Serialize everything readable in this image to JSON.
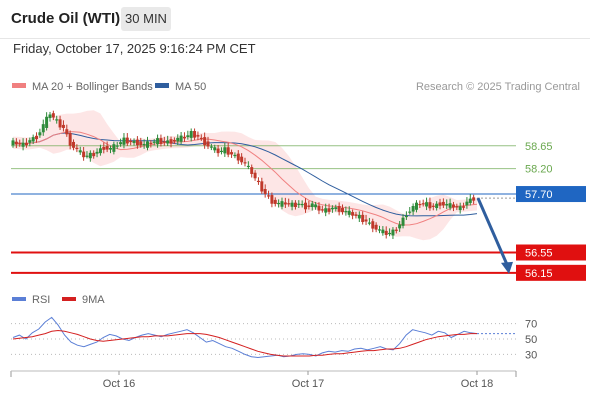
{
  "header": {
    "instrument": "Crude Oil (WTI)",
    "timeframe": "30 MIN",
    "datetime": "Friday, October 17, 2025 9:16:24 PM CET"
  },
  "legend": {
    "ma20_label": "MA 20 + Bollinger Bands",
    "ma50_label": "MA 50",
    "rsi_label": "RSI",
    "ma9_label": "9MA"
  },
  "credit": "Research © 2025 Trading Central",
  "colors": {
    "ma20": "#f08080",
    "ma50": "#2f5e9e",
    "bollinger_fill": "#fde3e3",
    "up_candle": "#2e8b3a",
    "down_candle": "#c0392b",
    "resistance": "#6aa84f",
    "pivot": "#1f66c2",
    "support": "#e01010",
    "arrow": "#2f5e9e",
    "rsi": "#5b7fd6",
    "rsi_ma": "#d42020"
  },
  "chart_data": [
    {
      "type": "line",
      "title": "Crude Oil (WTI) 30 MIN",
      "y_range": [
        55.95,
        59.55
      ],
      "x_ticks": [
        "Oct 16",
        "Oct 17",
        "Oct 18"
      ],
      "levels": [
        {
          "value": 58.65,
          "label": "58.65",
          "kind": "resistance"
        },
        {
          "value": 58.2,
          "label": "58.20",
          "kind": "resistance"
        },
        {
          "value": 57.7,
          "label": "57.70",
          "kind": "pivot"
        },
        {
          "value": 56.55,
          "label": "56.55",
          "kind": "support"
        },
        {
          "value": 56.15,
          "label": "56.15",
          "kind": "support"
        }
      ],
      "series": [
        {
          "name": "MA 20 + Bollinger Bands",
          "kind": "ma20"
        },
        {
          "name": "MA 50",
          "kind": "ma50"
        }
      ],
      "price_path": [
        [
          0,
          58.71
        ],
        [
          2,
          58.7
        ],
        [
          4,
          58.66
        ],
        [
          5,
          58.76
        ],
        [
          6,
          58.83
        ],
        [
          7,
          59.05
        ],
        [
          8,
          59.29
        ],
        [
          9,
          59.12
        ],
        [
          10,
          59.0
        ],
        [
          11,
          58.7
        ],
        [
          12,
          58.57
        ],
        [
          13,
          58.45
        ],
        [
          14,
          58.46
        ],
        [
          15,
          58.53
        ],
        [
          16,
          58.62
        ],
        [
          17,
          58.58
        ],
        [
          18,
          58.68
        ],
        [
          19,
          58.76
        ],
        [
          20,
          58.73
        ],
        [
          21,
          58.71
        ],
        [
          22,
          58.66
        ],
        [
          23,
          58.71
        ],
        [
          24,
          58.75
        ],
        [
          25,
          58.72
        ],
        [
          26,
          58.74
        ],
        [
          27,
          58.78
        ],
        [
          28,
          58.82
        ],
        [
          29,
          58.89
        ],
        [
          30,
          58.83
        ],
        [
          31,
          58.71
        ],
        [
          32,
          58.61
        ],
        [
          33,
          58.53
        ],
        [
          34,
          58.57
        ],
        [
          35,
          58.48
        ],
        [
          36,
          58.41
        ],
        [
          37,
          58.29
        ],
        [
          38,
          58.12
        ],
        [
          39,
          57.9
        ],
        [
          40,
          57.7
        ],
        [
          41,
          57.56
        ],
        [
          42,
          57.5
        ],
        [
          43,
          57.52
        ],
        [
          44,
          57.48
        ],
        [
          45,
          57.51
        ],
        [
          46,
          57.45
        ],
        [
          47,
          57.49
        ],
        [
          48,
          57.4
        ],
        [
          49,
          57.37
        ],
        [
          50,
          57.43
        ],
        [
          51,
          57.4
        ],
        [
          52,
          57.34
        ],
        [
          53,
          57.3
        ],
        [
          54,
          57.24
        ],
        [
          55,
          57.16
        ],
        [
          56,
          57.07
        ],
        [
          57,
          56.98
        ],
        [
          58,
          56.92
        ],
        [
          59,
          56.95
        ],
        [
          60,
          57.1
        ],
        [
          61,
          57.32
        ],
        [
          62,
          57.44
        ],
        [
          63,
          57.52
        ],
        [
          64,
          57.49
        ],
        [
          65,
          57.45
        ],
        [
          66,
          57.52
        ],
        [
          67,
          57.48
        ],
        [
          68,
          57.46
        ],
        [
          69,
          57.41
        ],
        [
          70,
          57.55
        ],
        [
          71,
          57.62
        ]
      ],
      "forecast": {
        "from": 57.62,
        "to": 56.15
      }
    },
    {
      "type": "line",
      "title": "RSI",
      "y_ticks": [
        70,
        50,
        30
      ],
      "y_range": [
        15,
        85
      ],
      "series": [
        {
          "name": "RSI",
          "values": [
            52,
            55,
            50,
            58,
            63,
            72,
            78,
            68,
            55,
            46,
            42,
            40,
            43,
            46,
            52,
            56,
            54,
            50,
            48,
            52,
            55,
            57,
            55,
            53,
            56,
            58,
            60,
            62,
            58,
            52,
            46,
            48,
            44,
            40,
            38,
            34,
            30,
            27,
            26,
            27,
            28,
            29,
            27,
            28,
            30,
            31,
            30,
            28,
            32,
            34,
            33,
            35,
            34,
            37,
            38,
            36,
            38,
            40,
            37,
            36,
            44,
            55,
            62,
            60,
            58,
            55,
            60,
            58,
            52,
            56,
            60,
            58,
            57
          ]
        },
        {
          "name": "9MA",
          "values": [
            50,
            51,
            52,
            53,
            55,
            57,
            60,
            61,
            60,
            58,
            56,
            53,
            50,
            48,
            47,
            48,
            49,
            50,
            51,
            52,
            53,
            53,
            54,
            54,
            54,
            55,
            56,
            57,
            57,
            57,
            56,
            54,
            52,
            49,
            46,
            43,
            40,
            37,
            34,
            32,
            30,
            29,
            28,
            28,
            28,
            28,
            28,
            29,
            29,
            30,
            31,
            31,
            32,
            33,
            34,
            35,
            35,
            36,
            37,
            37,
            38,
            40,
            43,
            46,
            49,
            51,
            53,
            54,
            55,
            56,
            56,
            57,
            57
          ]
        }
      ]
    }
  ]
}
